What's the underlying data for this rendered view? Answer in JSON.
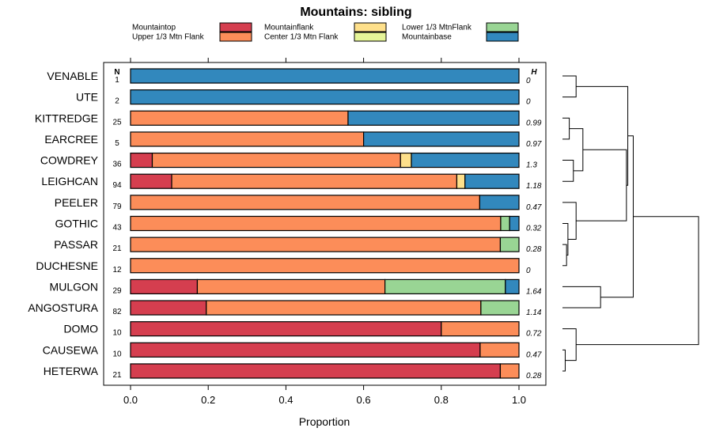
{
  "chart_data": {
    "type": "bar",
    "orientation": "horizontal",
    "stacked": true,
    "title": "Mountains: sibling",
    "xlabel": "Proportion",
    "xlim": [
      0,
      1
    ],
    "xticks": [
      "0.0",
      "0.2",
      "0.4",
      "0.6",
      "0.8",
      "1.0"
    ],
    "n_header": "N",
    "h_header": "H",
    "legend_position": "top",
    "legend": [
      {
        "name": "Mountaintop",
        "color": "#d53e4f"
      },
      {
        "name": "Upper 1/3 Mtn Flank",
        "color": "#fc8d59"
      },
      {
        "name": "Mountainflank",
        "color": "#fee08b"
      },
      {
        "name": "Center 1/3 Mtn Flank",
        "color": "#e6f598"
      },
      {
        "name": "Lower 1/3 MtnFlank",
        "color": "#99d594"
      },
      {
        "name": "Mountainbase",
        "color": "#3288bd"
      }
    ],
    "rows": [
      {
        "label": "VENABLE",
        "n": "1",
        "h": "0",
        "values": [
          0,
          0,
          0,
          0,
          0,
          1
        ]
      },
      {
        "label": "UTE",
        "n": "2",
        "h": "0",
        "values": [
          0,
          0,
          0,
          0,
          0,
          1
        ]
      },
      {
        "label": "KITTREDGE",
        "n": "25",
        "h": "0.99",
        "values": [
          0,
          0.56,
          0,
          0,
          0,
          0.44
        ]
      },
      {
        "label": "EARCREE",
        "n": "5",
        "h": "0.97",
        "values": [
          0,
          0.6,
          0,
          0,
          0,
          0.4
        ]
      },
      {
        "label": "COWDREY",
        "n": "36",
        "h": "1.3",
        "values": [
          0.056,
          0.639,
          0.028,
          0,
          0,
          0.277
        ]
      },
      {
        "label": "LEIGHCAN",
        "n": "94",
        "h": "1.18",
        "values": [
          0.106,
          0.734,
          0.021,
          0,
          0,
          0.139
        ]
      },
      {
        "label": "PEELER",
        "n": "79",
        "h": "0.47",
        "values": [
          0,
          0.899,
          0,
          0,
          0,
          0.101
        ]
      },
      {
        "label": "GOTHIC",
        "n": "43",
        "h": "0.32",
        "values": [
          0,
          0.953,
          0,
          0,
          0.023,
          0.024
        ]
      },
      {
        "label": "PASSAR",
        "n": "21",
        "h": "0.28",
        "values": [
          0,
          0.952,
          0,
          0,
          0.048,
          0
        ]
      },
      {
        "label": "DUCHESNE",
        "n": "12",
        "h": "0",
        "values": [
          0,
          1,
          0,
          0,
          0,
          0
        ]
      },
      {
        "label": "MULGON",
        "n": "29",
        "h": "1.64",
        "values": [
          0.172,
          0.483,
          0,
          0,
          0.31,
          0.035
        ]
      },
      {
        "label": "ANGOSTURA",
        "n": "82",
        "h": "1.14",
        "values": [
          0.195,
          0.707,
          0,
          0,
          0.098,
          0
        ]
      },
      {
        "label": "DOMO",
        "n": "10",
        "h": "0.72",
        "values": [
          0.8,
          0.2,
          0,
          0,
          0,
          0
        ]
      },
      {
        "label": "CAUSEWA",
        "n": "10",
        "h": "0.47",
        "values": [
          0.9,
          0.1,
          0,
          0,
          0,
          0
        ]
      },
      {
        "label": "HETERWA",
        "n": "21",
        "h": "0.28",
        "values": [
          0.952,
          0.048,
          0,
          0,
          0,
          0
        ]
      }
    ],
    "dendrogram": {
      "description": "hierarchical clustering of rows (row indices 0-14 top to bottom)",
      "merges": [
        {
          "left": {
            "leaf": 0
          },
          "right": {
            "leaf": 1
          },
          "height": 0.1
        },
        {
          "left": {
            "leaf": 2
          },
          "right": {
            "leaf": 3
          },
          "height": 0.05
        },
        {
          "left": {
            "leaf": 4
          },
          "right": {
            "leaf": 5
          },
          "height": 0.08
        },
        {
          "left": {
            "merge": 1
          },
          "right": {
            "merge": 2
          },
          "height": 0.15
        },
        {
          "left": {
            "leaf": 8
          },
          "right": {
            "leaf": 9
          },
          "height": 0.03
        },
        {
          "left": {
            "leaf": 7
          },
          "right": {
            "merge": 4
          },
          "height": 0.04
        },
        {
          "left": {
            "leaf": 6
          },
          "right": {
            "merge": 5
          },
          "height": 0.1
        },
        {
          "left": {
            "merge": 3
          },
          "right": {
            "merge": 6
          },
          "height": 0.47
        },
        {
          "left": {
            "merge": 0
          },
          "right": {
            "merge": 7
          },
          "height": 0.48
        },
        {
          "left": {
            "leaf": 10
          },
          "right": {
            "leaf": 11
          },
          "height": 0.28
        },
        {
          "left": {
            "merge": 8
          },
          "right": {
            "merge": 9
          },
          "height": 0.52
        },
        {
          "left": {
            "leaf": 13
          },
          "right": {
            "leaf": 14
          },
          "height": 0.02
        },
        {
          "left": {
            "leaf": 12
          },
          "right": {
            "merge": 11
          },
          "height": 0.1
        },
        {
          "left": {
            "merge": 10
          },
          "right": {
            "merge": 12
          },
          "height": 1.0
        }
      ]
    }
  }
}
